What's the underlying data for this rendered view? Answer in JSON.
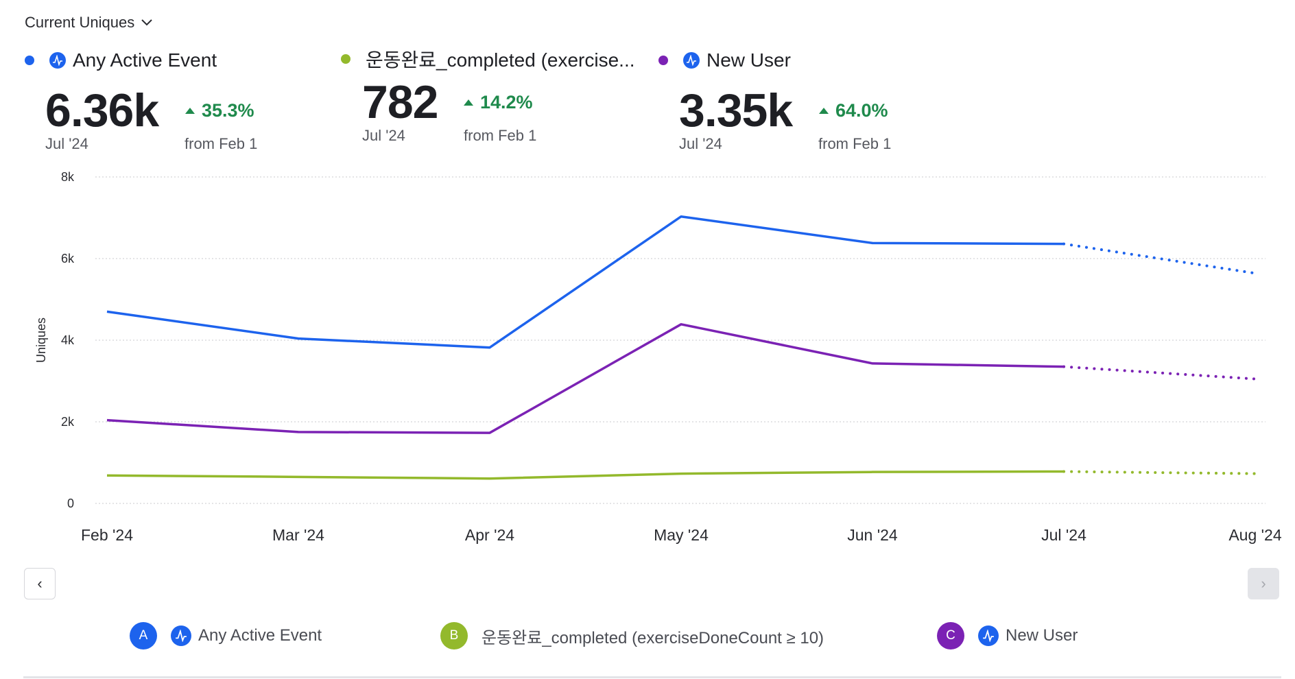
{
  "header": {
    "metric_selector": "Current Uniques"
  },
  "summary": [
    {
      "name": "Any Active Event",
      "value": "6.36k",
      "period": "Jul '24",
      "change": "35.3%",
      "change_ref": "from Feb 1",
      "color": "#1d63ed"
    },
    {
      "name": "운동완료_completed (exercise...",
      "value": "782",
      "period": "Jul '24",
      "change": "14.2%",
      "change_ref": "from Feb 1",
      "color": "#93b92c"
    },
    {
      "name": "New User",
      "value": "3.35k",
      "period": "Jul '24",
      "change": "64.0%",
      "change_ref": "from Feb 1",
      "color": "#7b22b4"
    }
  ],
  "legend": [
    {
      "letter": "A",
      "label": "Any Active Event",
      "color": "#1d63ed"
    },
    {
      "letter": "B",
      "label": "운동완료_completed (exerciseDoneCount ≥ 10)",
      "color": "#93b92c"
    },
    {
      "letter": "C",
      "label": "New User",
      "color": "#7b22b4"
    }
  ],
  "nav": {
    "prev": "‹",
    "next": "›"
  },
  "chart_data": {
    "type": "line",
    "ylabel": "Uniques",
    "ylim": [
      0,
      8000
    ],
    "yticks": [
      {
        "v": 0,
        "label": "0"
      },
      {
        "v": 2000,
        "label": "2k"
      },
      {
        "v": 4000,
        "label": "4k"
      },
      {
        "v": 6000,
        "label": "6k"
      },
      {
        "v": 8000,
        "label": "8k"
      }
    ],
    "categories": [
      "Feb '24",
      "Mar '24",
      "Apr '24",
      "May '24",
      "Jun '24",
      "Jul '24",
      "Aug '24"
    ],
    "projected_from_index": 5,
    "grid": true,
    "series": [
      {
        "name": "Any Active Event",
        "color": "#1d63ed",
        "values": [
          4700,
          4040,
          3820,
          7030,
          6380,
          6360,
          5640
        ]
      },
      {
        "name": "New User",
        "color": "#7b22b4",
        "values": [
          2040,
          1750,
          1730,
          4390,
          3430,
          3350,
          3050
        ]
      },
      {
        "name": "운동완료_completed (exerciseDoneCount ≥ 10)",
        "color": "#93b92c",
        "values": [
          685,
          650,
          610,
          730,
          770,
          782,
          730
        ]
      }
    ]
  }
}
